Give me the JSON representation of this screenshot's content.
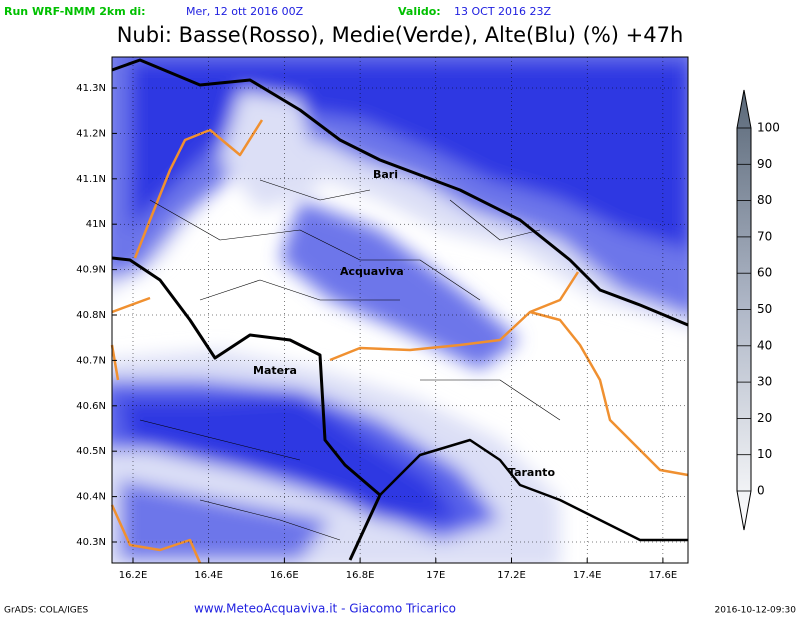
{
  "header": {
    "run_label": "Run WRF-NMM 2km di:",
    "run_date": "Mer, 12 ott 2016 00Z",
    "valid_label": "Valido:",
    "valid_date": "13 OCT 2016 23Z"
  },
  "title": "Nubi: Basse(Rosso), Medie(Verde), Alte(Blu) (%) +47h",
  "lat_ticks": [
    "41.3N",
    "41.2N",
    "41.1N",
    "41N",
    "40.9N",
    "40.8N",
    "40.7N",
    "40.6N",
    "40.5N",
    "40.4N",
    "40.3N"
  ],
  "lon_ticks": [
    "16.2E",
    "16.4E",
    "16.6E",
    "16.8E",
    "17E",
    "17.2E",
    "17.4E",
    "17.6E"
  ],
  "cities": [
    "Bari",
    "Acquaviva",
    "Matera",
    "Taranto"
  ],
  "colorbar": {
    "levels": [
      100,
      90,
      80,
      70,
      60,
      50,
      40,
      30,
      20,
      10,
      0
    ]
  },
  "footer": {
    "left": "GrADS: COLA/IGES",
    "center": "www.MeteoAcquaviva.it - Giacomo Tricarico",
    "right": "2016-10-12-09:30"
  }
}
